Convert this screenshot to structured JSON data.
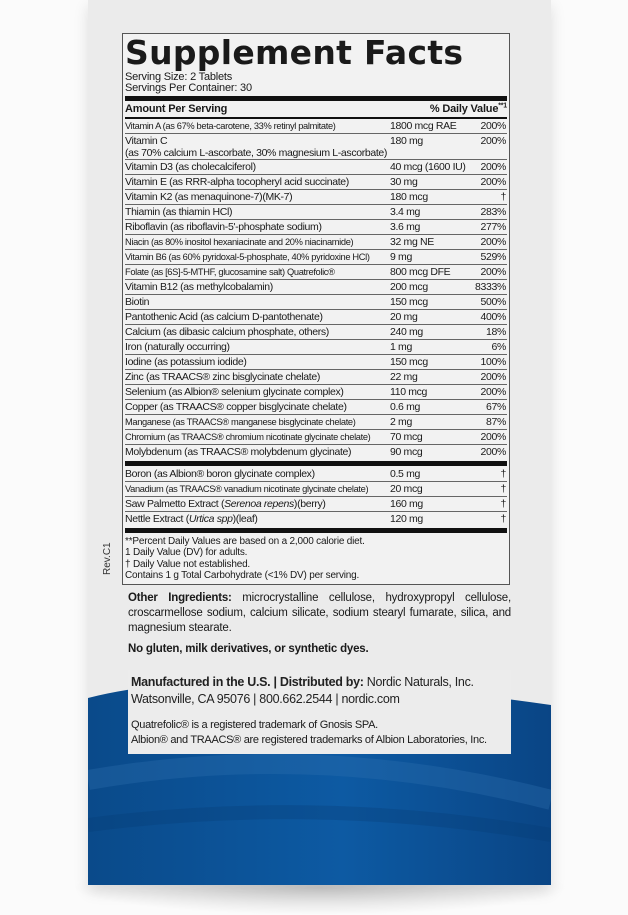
{
  "colors": {
    "box": "#ebebeb",
    "blue": "#0b4f93",
    "text": "#1a1a1a"
  },
  "panel": {
    "title": "Supplement Facts",
    "serving_size": "Serving Size: 2 Tablets",
    "servings_per_container": "Servings Per Container: 30",
    "header_amount": "Amount Per Serving",
    "header_dv": "% Daily Value",
    "header_dv_mark": "**1",
    "rows": [
      {
        "name": "Vitamin A (as 67% beta-carotene, 33% retinyl palmitate)",
        "amount": "1800 mcg RAE",
        "dv": "200%"
      },
      {
        "name": "Vitamin C",
        "sub": "(as 70% calcium L-ascorbate, 30% magnesium L-ascorbate)",
        "amount": "180 mg",
        "dv": "200%"
      },
      {
        "name": "Vitamin D3 (as cholecalciferol)",
        "amount": "40 mcg (1600 IU)",
        "dv": "200%"
      },
      {
        "name": "Vitamin E (as RRR-alpha tocopheryl acid succinate)",
        "amount": "30 mg",
        "dv": "200%"
      },
      {
        "name": "Vitamin K2 (as menaquinone-7)(MK-7)",
        "amount": "180 mcg",
        "dv": "†"
      },
      {
        "name": "Thiamin (as thiamin HCl)",
        "amount": "3.4 mg",
        "dv": "283%"
      },
      {
        "name": "Riboflavin (as riboflavin-5'-phosphate sodium)",
        "amount": "3.6 mg",
        "dv": "277%"
      },
      {
        "name": "Niacin (as 80% inositol hexaniacinate and 20% niacinamide)",
        "amount": "32 mg NE",
        "dv": "200%"
      },
      {
        "name": "Vitamin B6 (as 60% pyridoxal-5-phosphate, 40% pyridoxine HCl)",
        "amount": "9 mg",
        "dv": "529%"
      },
      {
        "name": "Folate (as [6S]-5-MTHF, glucosamine salt) Quatrefolic®",
        "amount": "800 mcg DFE",
        "dv": "200%"
      },
      {
        "name": "Vitamin B12 (as methylcobalamin)",
        "amount": "200 mcg",
        "dv": "8333%"
      },
      {
        "name": "Biotin",
        "amount": "150 mcg",
        "dv": "500%"
      },
      {
        "name": "Pantothenic Acid (as calcium D-pantothenate)",
        "amount": "20 mg",
        "dv": "400%"
      },
      {
        "name": "Calcium (as dibasic calcium phosphate, others)",
        "amount": "240 mg",
        "dv": "18%"
      },
      {
        "name": "Iron (naturally occurring)",
        "amount": "1 mg",
        "dv": "6%"
      },
      {
        "name": "Iodine (as potassium iodide)",
        "amount": "150 mcg",
        "dv": "100%"
      },
      {
        "name": "Zinc (as TRAACS® zinc bisglycinate chelate)",
        "amount": "22 mg",
        "dv": "200%"
      },
      {
        "name": "Selenium (as Albion® selenium glycinate complex)",
        "amount": "110 mcg",
        "dv": "200%"
      },
      {
        "name": "Copper (as TRAACS® copper bisglycinate chelate)",
        "amount": "0.6 mg",
        "dv": "67%"
      },
      {
        "name": "Manganese (as TRAACS® manganese bisglycinate chelate)",
        "amount": "2 mg",
        "dv": "87%"
      },
      {
        "name": "Chromium (as TRAACS® chromium nicotinate glycinate chelate)",
        "amount": "70 mcg",
        "dv": "200%"
      },
      {
        "name": "Molybdenum (as TRAACS® molybdenum glycinate)",
        "amount": "90 mcg",
        "dv": "200%"
      }
    ],
    "rows2": [
      {
        "name": "Boron (as Albion® boron glycinate complex)",
        "amount": "0.5 mg",
        "dv": "†"
      },
      {
        "name": "Vanadium (as TRAACS® vanadium nicotinate glycinate chelate)",
        "amount": "20 mcg",
        "dv": "†"
      },
      {
        "name_pre": "Saw Palmetto Extract (",
        "name_italic": "Serenoa repens",
        "name_post": ")(berry)",
        "amount": "160 mg",
        "dv": "†"
      },
      {
        "name_pre": "Nettle Extract (",
        "name_italic": "Urtica spp",
        "name_post": ")(leaf)",
        "amount": "120 mg",
        "dv": "†"
      }
    ],
    "footnotes": [
      "**Percent Daily Values are based on a 2,000 calorie diet.",
      "1 Daily Value (DV) for adults.",
      "† Daily Value not established.",
      "Contains 1 g Total Carbohydrate (<1% DV) per serving."
    ]
  },
  "revision": "Rev.C1",
  "other_ingredients": {
    "label": "Other Ingredients:",
    "text": " microcrystalline cellulose, hydroxypropyl cellulose, croscarmellose sodium, calcium silicate, sodium stearyl fumarate, silica, and magnesium stearate."
  },
  "free_of": "No gluten, milk derivatives, or synthetic dyes.",
  "manufacturer": {
    "label": "Manufactured in the U.S. | Distributed by:",
    "name": " Nordic Naturals, Inc.",
    "address": "Watsonville, CA 95076 | 800.662.2544 | nordic.com"
  },
  "trademarks": [
    "Quatrefolic® is a registered trademark of Gnosis SPA.",
    "Albion® and TRAACS® are registered trademarks of Albion Laboratories, Inc."
  ]
}
